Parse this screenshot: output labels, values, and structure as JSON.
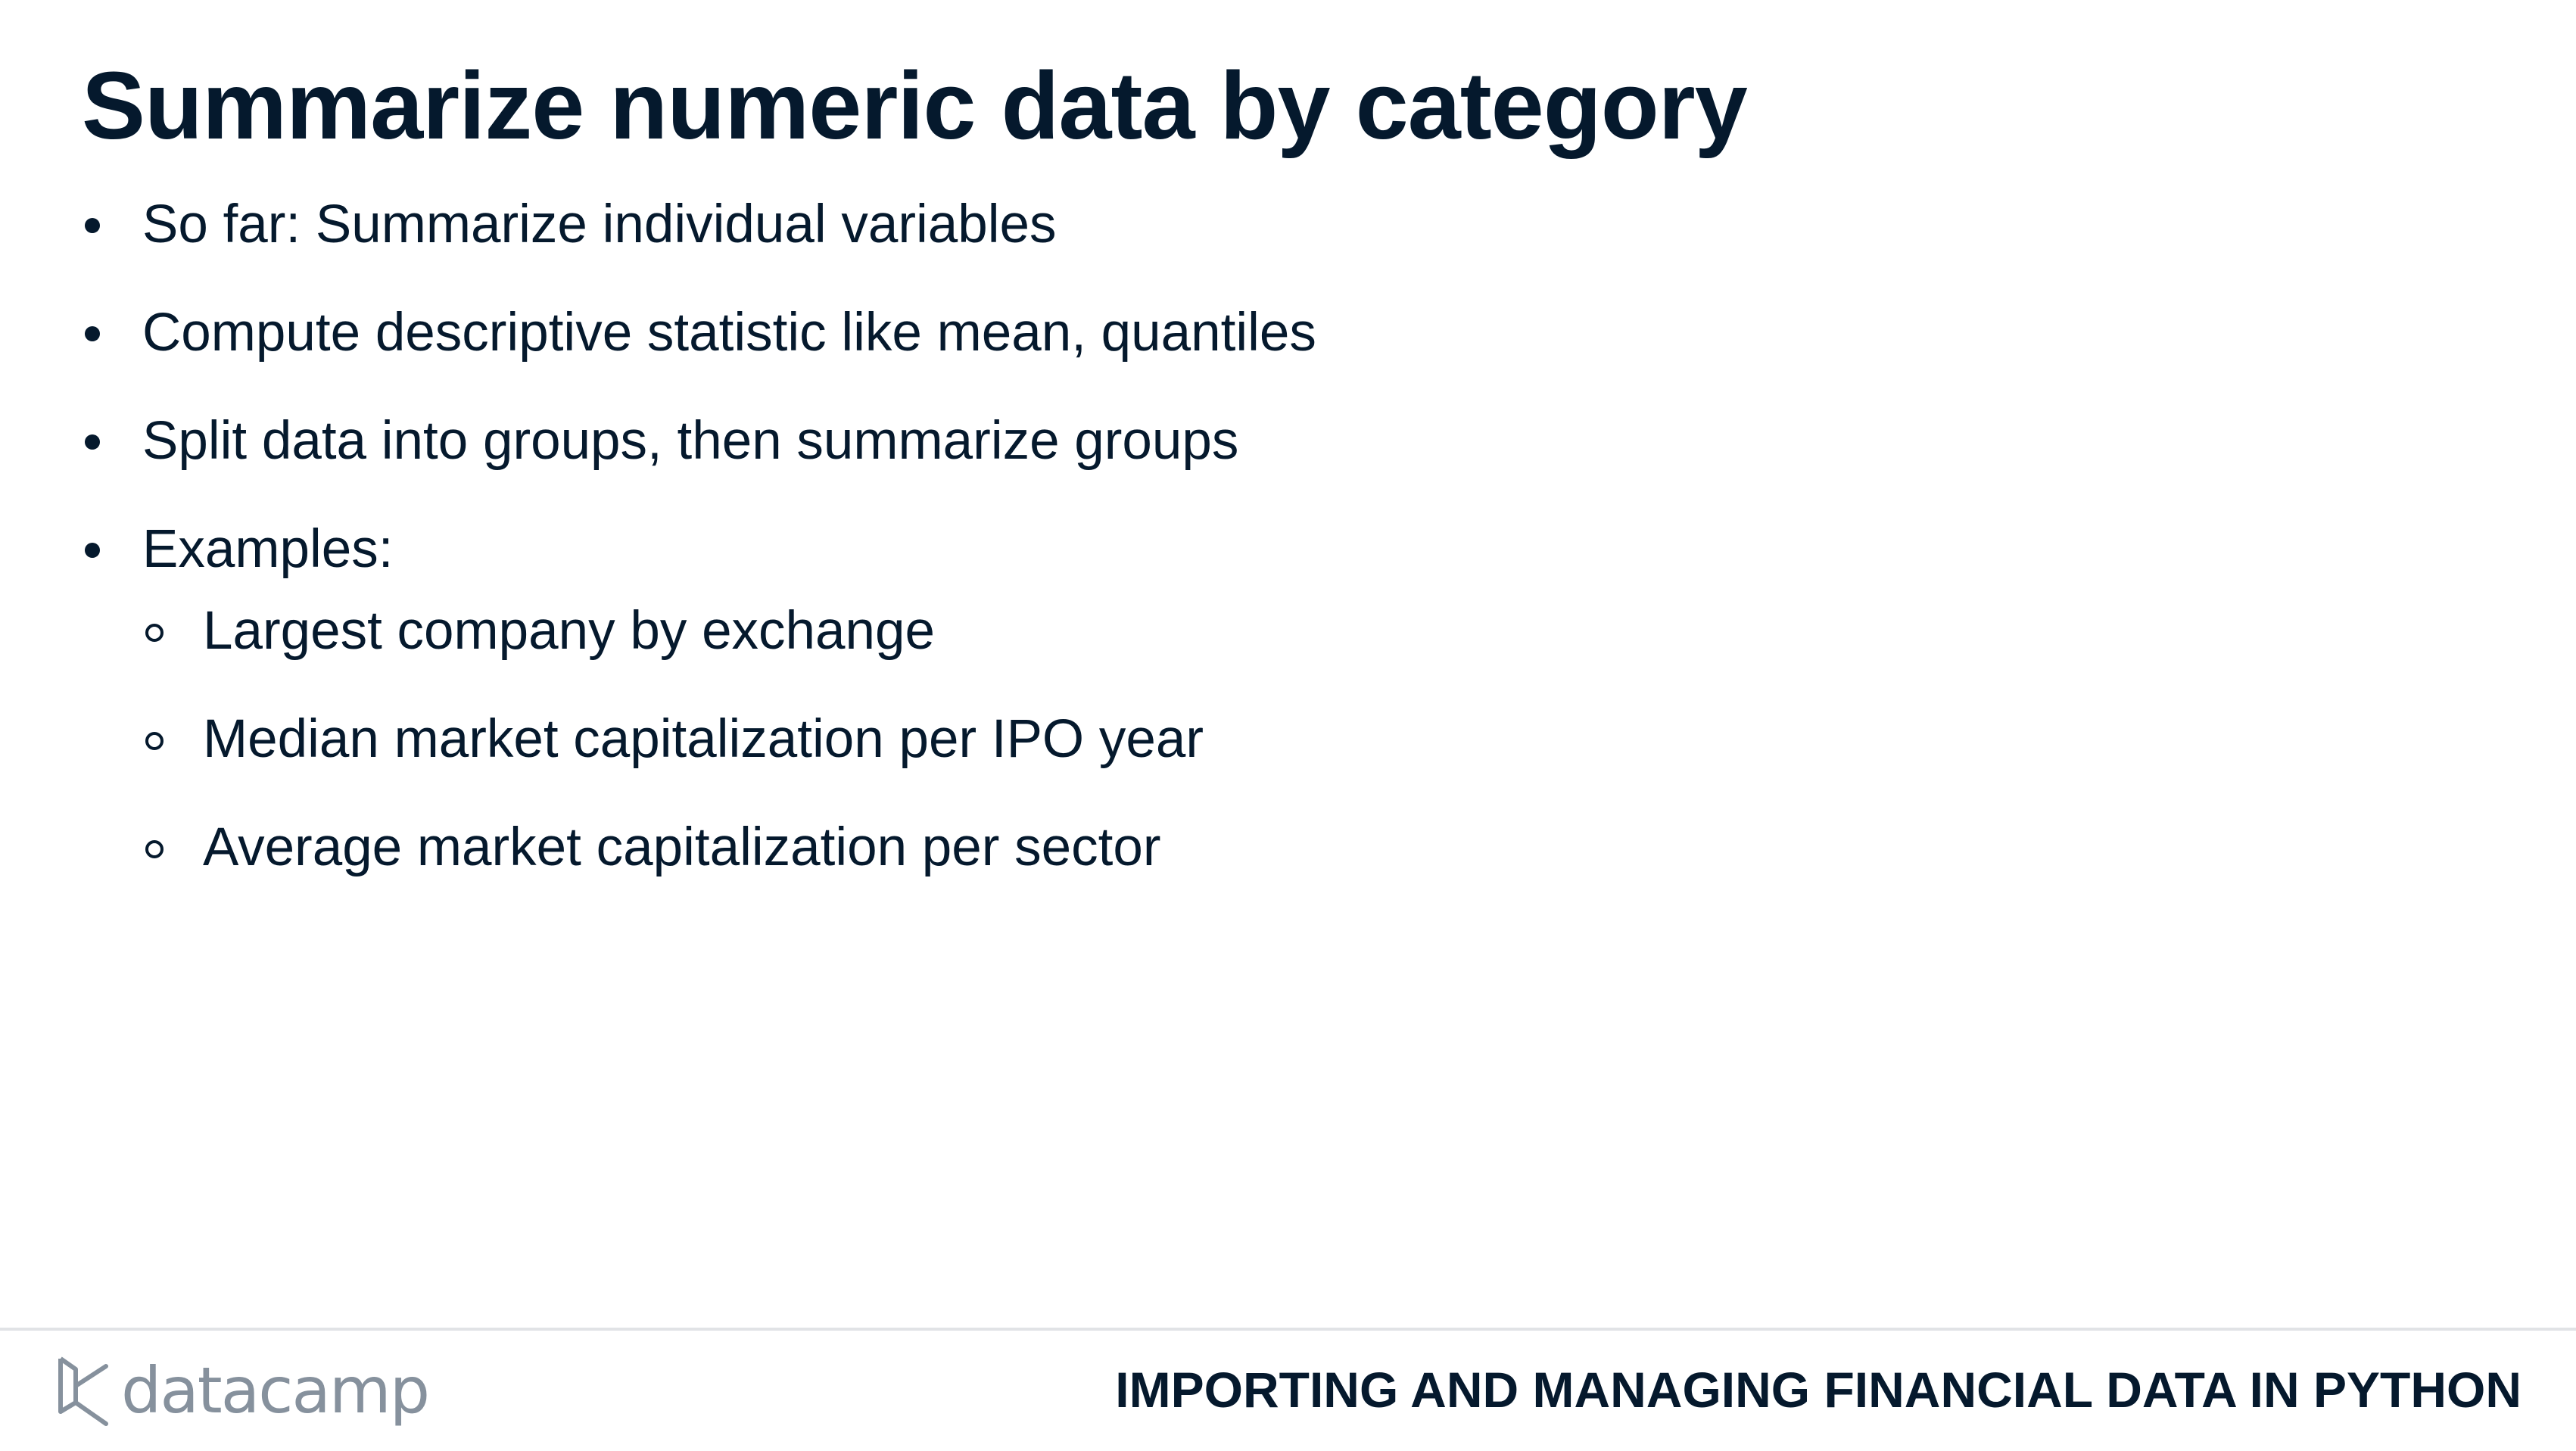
{
  "slide": {
    "title": "Summarize numeric data by category",
    "bullets": [
      "So far: Summarize individual variables",
      "Compute descriptive statistic like mean, quantiles",
      "Split data into groups, then summarize groups",
      "Examples:"
    ],
    "sub_bullets": [
      "Largest company by exchange",
      "Median market capitalization per IPO year",
      "Average market capitalization per sector"
    ]
  },
  "footer": {
    "logo_text": "datacamp",
    "course_title": "IMPORTING AND MANAGING FINANCIAL DATA IN PYTHON"
  },
  "colors": {
    "text": "#05192d",
    "logo": "#86919d",
    "rule": "#e1e3e6"
  }
}
